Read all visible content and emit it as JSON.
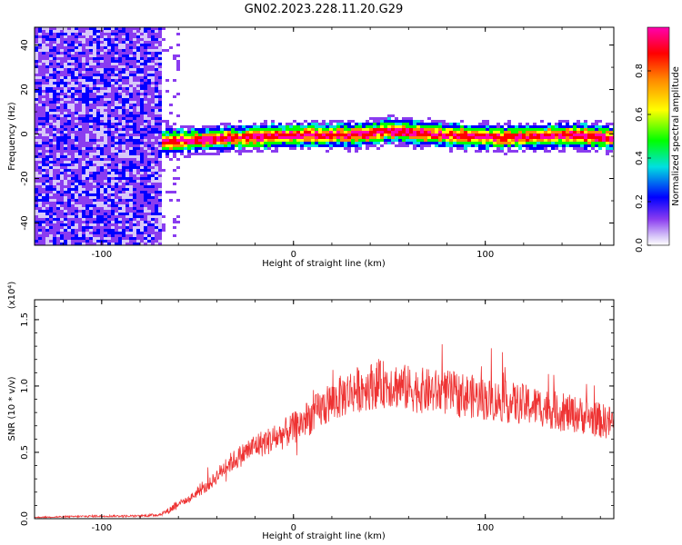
{
  "figure_title": "GN02.2023.228.11.20.G29",
  "chart_data": [
    {
      "type": "heatmap",
      "title": "",
      "xlabel": "Height of straight line (km)",
      "ylabel": "Frequency (Hz)",
      "xlim": [
        -135,
        167
      ],
      "ylim": [
        -50,
        48
      ],
      "x_ticks": [
        -100,
        0,
        100
      ],
      "x_tick_labels": [
        "-100",
        "0",
        "100"
      ],
      "y_ticks": [
        -40,
        -20,
        0,
        20,
        40
      ],
      "y_tick_labels": [
        "-40",
        "-20",
        "0",
        "20",
        "40"
      ],
      "colorbar": {
        "label": "Normalized spectral amplitude",
        "range": [
          0,
          1
        ],
        "ticks": [
          0.0,
          0.2,
          0.4,
          0.6,
          0.8
        ],
        "tick_labels": [
          "0.0",
          "0.2",
          "0.4",
          "0.6",
          "0.8"
        ],
        "colormap": [
          "#ffffff",
          "#d8c8f8",
          "#8a3cf0",
          "#0000ff",
          "#00e0e0",
          "#00ff00",
          "#ffff00",
          "#ff8800",
          "#ff0000",
          "#ff00b0"
        ]
      },
      "noise_region_x": [
        -135,
        -70
      ],
      "signal_start_x": -70,
      "signal_center_frequency_hz": 0,
      "signal_trace": [
        {
          "x": -70,
          "y": -3
        },
        {
          "x": -50,
          "y": -2
        },
        {
          "x": -30,
          "y": -1
        },
        {
          "x": 0,
          "y": 0
        },
        {
          "x": 30,
          "y": 0
        },
        {
          "x": 50,
          "y": 2
        },
        {
          "x": 80,
          "y": 0
        },
        {
          "x": 110,
          "y": -1
        },
        {
          "x": 140,
          "y": 0
        },
        {
          "x": 167,
          "y": -1
        }
      ]
    },
    {
      "type": "line",
      "title": "",
      "xlabel": "Height of straight line (km)",
      "ylabel": "SNR (10 * v/v)",
      "y_scale_label": "(x10⁴)",
      "xlim": [
        -135,
        167
      ],
      "ylim": [
        0,
        1.65
      ],
      "x_ticks": [
        -100,
        0,
        100
      ],
      "x_tick_labels": [
        "-100",
        "0",
        "100"
      ],
      "y_ticks": [
        0,
        0.5,
        1.0,
        1.5
      ],
      "y_tick_labels": [
        "0.0",
        "0.5",
        "1.0",
        "1.5"
      ],
      "series": [
        {
          "color": "#ee3333",
          "x": [
            -135,
            -100,
            -80,
            -70,
            -65,
            -60,
            -55,
            -50,
            -45,
            -40,
            -35,
            -30,
            -20,
            -10,
            0,
            10,
            20,
            30,
            40,
            50,
            60,
            70,
            80,
            90,
            100,
            110,
            120,
            130,
            140,
            150,
            160,
            167
          ],
          "y": [
            0.01,
            0.02,
            0.02,
            0.03,
            0.06,
            0.12,
            0.14,
            0.2,
            0.24,
            0.32,
            0.4,
            0.45,
            0.55,
            0.6,
            0.68,
            0.78,
            0.88,
            0.96,
            1.0,
            1.02,
            0.98,
            0.96,
            0.95,
            0.93,
            0.9,
            0.88,
            0.86,
            0.84,
            0.8,
            0.78,
            0.74,
            0.72
          ]
        }
      ]
    }
  ]
}
